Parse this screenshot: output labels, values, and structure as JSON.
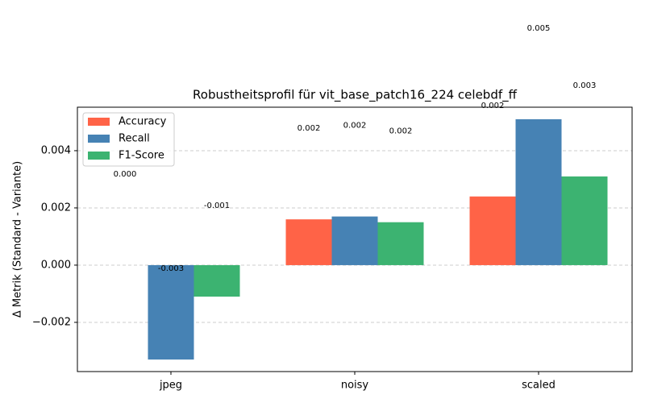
{
  "chart_data": {
    "type": "bar",
    "title": "Robustheitsprofil für vit_base_patch16_224 celebdf_ff",
    "y_label": "Δ Metrik (Standard - Variante)",
    "categories": [
      "jpeg",
      "noisy",
      "scaled"
    ],
    "series": [
      {
        "name": "Accuracy",
        "color": "#ff6347",
        "values": [
          0.0,
          0.0016,
          0.0024
        ],
        "value_labels": [
          "0.000",
          "0.002",
          "0.002"
        ]
      },
      {
        "name": "Recall",
        "color": "#4682b4",
        "values": [
          -0.0033,
          0.0017,
          0.0051
        ],
        "value_labels": [
          "-0.003",
          "0.002",
          "0.005"
        ]
      },
      {
        "name": "F1-Score",
        "color": "#3cb371",
        "values": [
          -0.0011,
          0.0015,
          0.0031
        ],
        "value_labels": [
          "-0.001",
          "0.002",
          "0.003"
        ]
      }
    ],
    "ylim": [
      -0.00372,
      0.00552
    ],
    "yticks": [
      {
        "value": -0.002,
        "label": "−0.002"
      },
      {
        "value": 0,
        "label": "0.000"
      },
      {
        "value": 0.002,
        "label": "0.002"
      },
      {
        "value": 0.004,
        "label": "0.004"
      }
    ],
    "grid": true,
    "legend": "upper left"
  }
}
